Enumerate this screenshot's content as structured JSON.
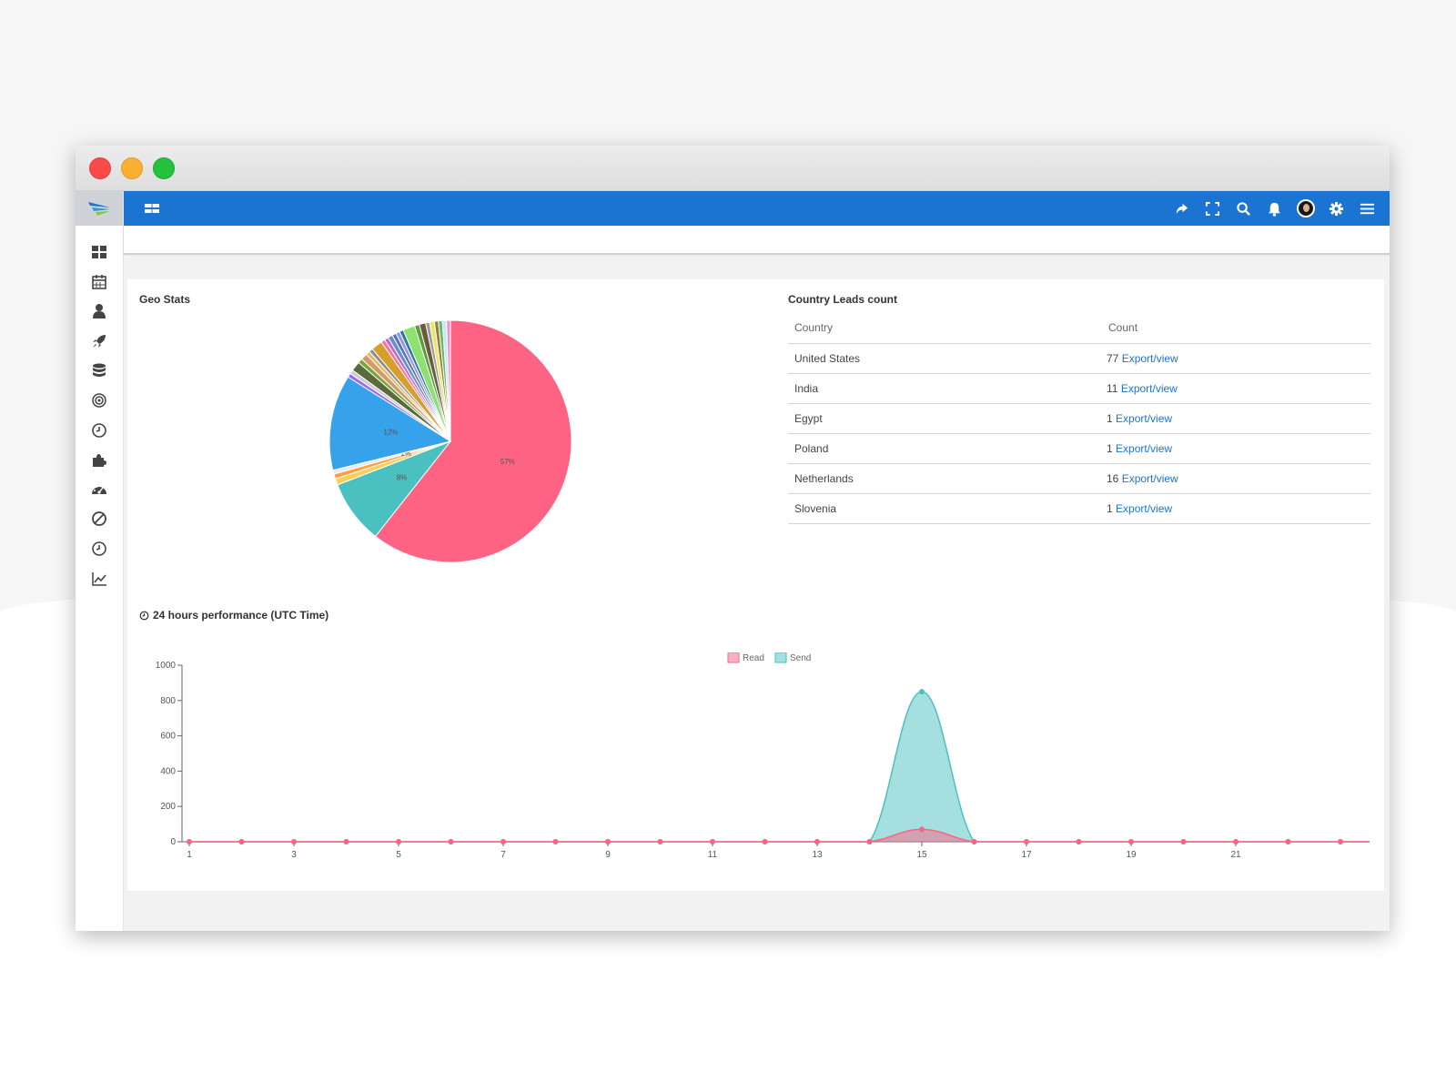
{
  "topbar": {
    "icons": [
      "share-icon",
      "fullscreen-icon",
      "search-icon",
      "bell-icon",
      "avatar",
      "gear-icon",
      "hamburger-menu-icon"
    ]
  },
  "sidebar": {
    "icons": [
      "dashboard-icon",
      "calendar-icon",
      "user-icon",
      "rocket-icon",
      "database-icon",
      "target-icon",
      "clock-icon",
      "puzzle-icon",
      "gauge-icon",
      "ban-icon",
      "history-icon",
      "line-chart-icon"
    ]
  },
  "geo_stats": {
    "title": "Geo Stats"
  },
  "country_leads": {
    "title": "Country Leads count",
    "headers": {
      "country": "Country",
      "count": "Count"
    },
    "rows": [
      {
        "country": "United States",
        "count": "77",
        "link": "Export/view"
      },
      {
        "country": "India",
        "count": "11",
        "link": "Export/view"
      },
      {
        "country": "Egypt",
        "count": "1",
        "link": "Export/view"
      },
      {
        "country": "Poland",
        "count": "1",
        "link": "Export/view"
      },
      {
        "country": "Netherlands",
        "count": "16",
        "link": "Export/view"
      },
      {
        "country": "Slovenia",
        "count": "1",
        "link": "Export/view"
      }
    ]
  },
  "performance": {
    "title": "24 hours performance (UTC Time)"
  },
  "chart_data": [
    {
      "type": "pie",
      "title": "Geo Stats",
      "slices": [
        {
          "value": 57,
          "label": "57%",
          "color": "#ff6384"
        },
        {
          "value": 8,
          "label": "8%",
          "color": "#4bc0c0"
        },
        {
          "value": 0.8,
          "label": "",
          "color": "#ffce56"
        },
        {
          "value": 0.6,
          "label": "",
          "color": "#ff9f40"
        },
        {
          "value": 0.5,
          "label": "1%",
          "color": "#e7e9ed"
        },
        {
          "value": 12,
          "label": "12%",
          "color": "#36a2eb"
        },
        {
          "value": 0.5,
          "label": "",
          "color": "#9966ff"
        },
        {
          "value": 0.5,
          "label": "",
          "color": "#c9cbcf"
        },
        {
          "value": 1.2,
          "label": "",
          "color": "#5a6a3c"
        },
        {
          "value": 0.6,
          "label": "",
          "color": "#7aa63b"
        },
        {
          "value": 0.8,
          "label": "",
          "color": "#d49b6a"
        },
        {
          "value": 0.5,
          "label": "",
          "color": "#e0b96b"
        },
        {
          "value": 0.5,
          "label": "",
          "color": "#8d8d8d"
        },
        {
          "value": 1.4,
          "label": "",
          "color": "#d4a029"
        },
        {
          "value": 0.5,
          "label": "",
          "color": "#ff6f9c"
        },
        {
          "value": 0.5,
          "label": "",
          "color": "#b76ec6"
        },
        {
          "value": 0.6,
          "label": "",
          "color": "#6b8cce"
        },
        {
          "value": 0.5,
          "label": "",
          "color": "#5576b0"
        },
        {
          "value": 0.5,
          "label": "",
          "color": "#9d91e6"
        },
        {
          "value": 0.5,
          "label": "",
          "color": "#2a7a9c"
        },
        {
          "value": 1.5,
          "label": "",
          "color": "#8ee070"
        },
        {
          "value": 0.6,
          "label": "",
          "color": "#5a9e3c"
        },
        {
          "value": 0.8,
          "label": "",
          "color": "#6b5a3c"
        },
        {
          "value": 0.5,
          "label": "",
          "color": "#9b9b9b"
        },
        {
          "value": 0.6,
          "label": "",
          "color": "#e8e866"
        },
        {
          "value": 0.5,
          "label": "",
          "color": "#9a7c3a"
        },
        {
          "value": 0.5,
          "label": "",
          "color": "#5cc06a"
        },
        {
          "value": 0.5,
          "label": "",
          "color": "#c7e6f7"
        },
        {
          "value": 0.5,
          "label": "",
          "color": "#e799cc"
        }
      ]
    },
    {
      "type": "area",
      "title": "24 hours performance (UTC Time)",
      "x": [
        1,
        2,
        3,
        4,
        5,
        6,
        7,
        8,
        9,
        10,
        11,
        12,
        13,
        14,
        15,
        16,
        17,
        18,
        19,
        20,
        21,
        22,
        23,
        24
      ],
      "x_tick_labels": [
        "1",
        "3",
        "5",
        "7",
        "9",
        "11",
        "13",
        "15",
        "17",
        "19",
        "21"
      ],
      "ylim": [
        0,
        1000
      ],
      "y_ticks": [
        0,
        200,
        400,
        600,
        800,
        1000
      ],
      "legend": "top",
      "series": [
        {
          "name": "Read",
          "color": "#ff6384",
          "fill": "rgba(255,99,132,0.5)",
          "values": [
            0,
            0,
            0,
            0,
            0,
            0,
            0,
            0,
            0,
            0,
            0,
            0,
            0,
            0,
            70,
            0,
            0,
            0,
            0,
            0,
            0,
            0,
            0,
            0
          ]
        },
        {
          "name": "Send",
          "color": "#4bc0c0",
          "fill": "rgba(75,192,192,0.5)",
          "values": [
            0,
            0,
            0,
            0,
            0,
            0,
            0,
            0,
            0,
            0,
            0,
            0,
            0,
            0,
            850,
            0,
            0,
            0,
            0,
            0,
            0,
            0,
            0,
            0
          ]
        }
      ]
    }
  ]
}
